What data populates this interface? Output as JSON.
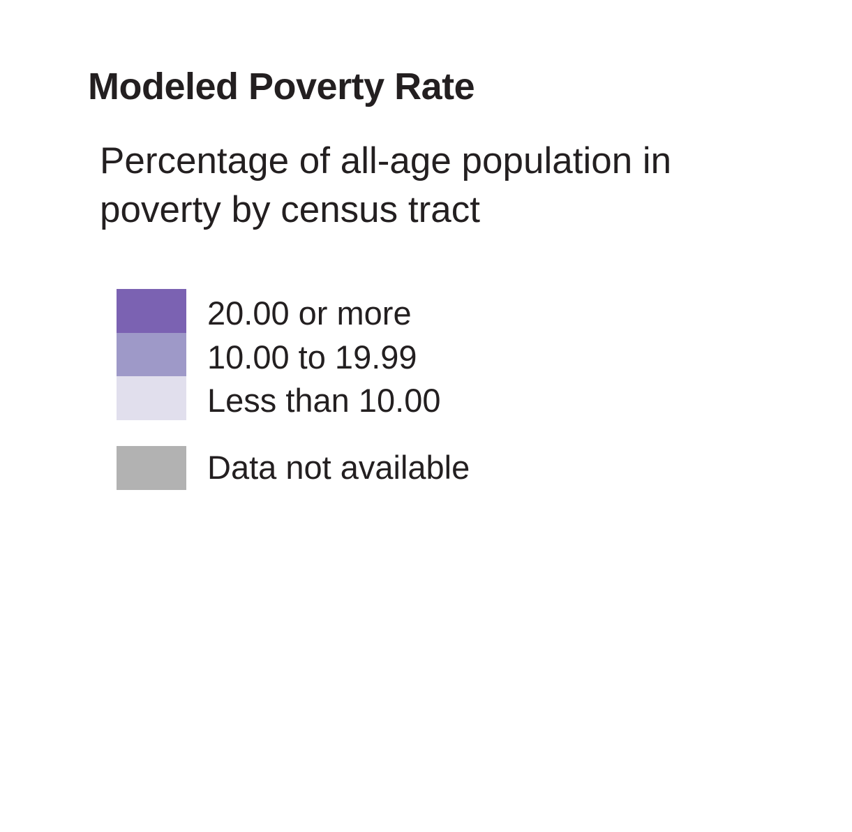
{
  "legend": {
    "title": "Modeled Poverty Rate",
    "subtitle_lines": [
      "Percentage of all-age population in",
      "poverty by census tract"
    ],
    "classes": [
      {
        "label": "20.00 or more",
        "color": "#7b62b2"
      },
      {
        "label": "10.00 to 19.99",
        "color": "#9e99c8"
      },
      {
        "label": "Less than 10.00",
        "color": "#e1dfed"
      }
    ],
    "no_data": {
      "label": "Data not available",
      "color": "#b2b2b2"
    }
  }
}
